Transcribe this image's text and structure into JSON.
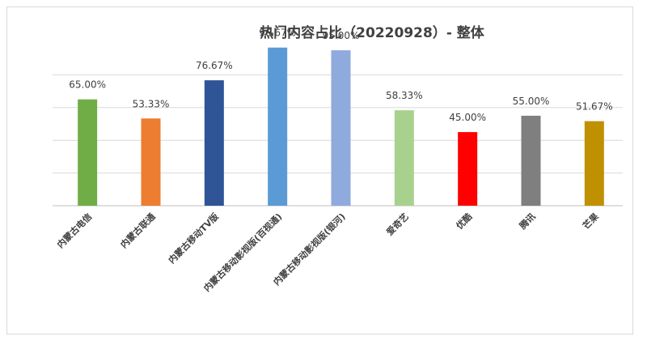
{
  "chart_data": {
    "type": "bar",
    "title": "热门内容占比（20220928）- 整体",
    "categories": [
      "内蒙古电信",
      "内蒙古联通",
      "内蒙古移动TV版",
      "内蒙古移动影视版(百视通)",
      "内蒙古移动影视版(银河)",
      "爱奇艺",
      "优酷",
      "腾讯",
      "芒果"
    ],
    "values": [
      65.0,
      53.33,
      76.67,
      96.67,
      95.0,
      58.33,
      45.0,
      55.0,
      51.67
    ],
    "data_labels": [
      "65.00%",
      "53.33%",
      "76.67%",
      "96.67%",
      "95.00%",
      "58.33%",
      "45.00%",
      "55.00%",
      "51.67%"
    ],
    "colors": [
      "#70ad47",
      "#ed7d31",
      "#2f5597",
      "#5b9bd5",
      "#8faadc",
      "#a9d18e",
      "#ff0000",
      "#7f7f7f",
      "#bf9000"
    ],
    "ylim": [
      0,
      100
    ],
    "grid": true,
    "legend": "none",
    "xlabel": "",
    "ylabel": ""
  }
}
